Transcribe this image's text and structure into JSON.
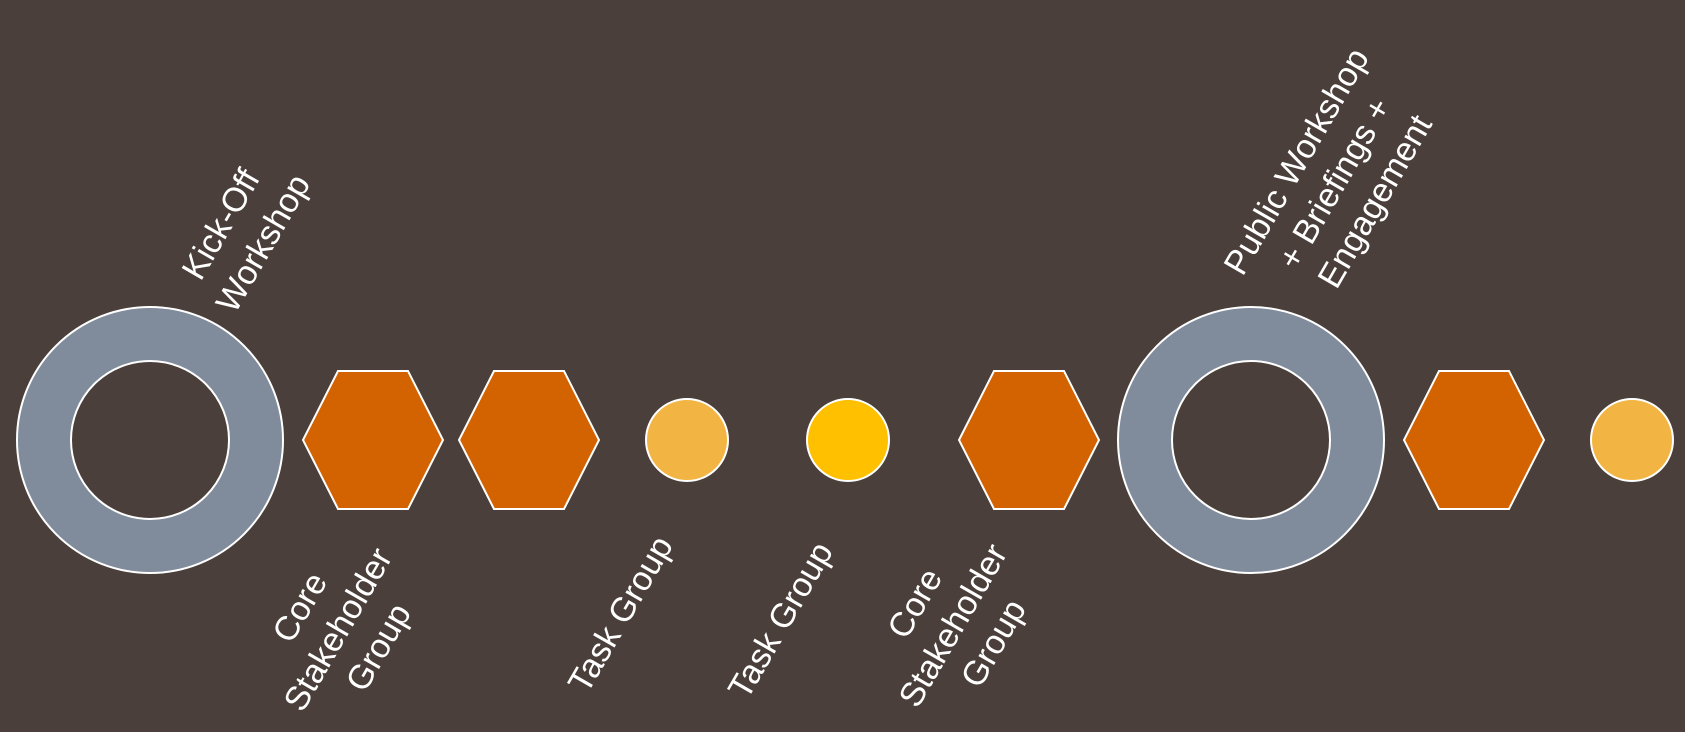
{
  "colors": {
    "background": "#4a3f3a",
    "ring": "#808c9c",
    "hexagon": "#d26300",
    "dot_light": "#f2b544",
    "dot_bright": "#ffc000",
    "outline": "#ffffff",
    "text": "#ffffff"
  },
  "labels": {
    "kickoff": [
      "Kick-Off",
      "Workshop"
    ],
    "core1": [
      "Core",
      "Stakeholder",
      "Group"
    ],
    "task1": [
      "Task Group"
    ],
    "task2": [
      "Task Group"
    ],
    "core2": [
      "Core",
      "Stakeholder",
      "Group"
    ],
    "public": [
      "Public Workshop",
      "+ Briefings +",
      "Engagement"
    ]
  }
}
